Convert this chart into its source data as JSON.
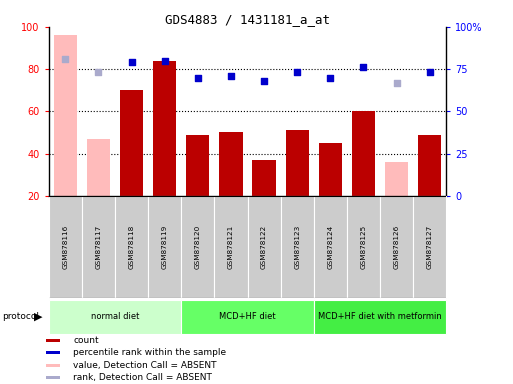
{
  "title": "GDS4883 / 1431181_a_at",
  "samples": [
    "GSM878116",
    "GSM878117",
    "GSM878118",
    "GSM878119",
    "GSM878120",
    "GSM878121",
    "GSM878122",
    "GSM878123",
    "GSM878124",
    "GSM878125",
    "GSM878126",
    "GSM878127"
  ],
  "count_values": [
    null,
    null,
    70,
    84,
    49,
    50,
    37,
    51,
    45,
    60,
    null,
    49
  ],
  "count_absent": [
    96,
    47,
    null,
    null,
    null,
    null,
    null,
    null,
    null,
    null,
    36,
    null
  ],
  "percentile_values": [
    null,
    null,
    79,
    80,
    70,
    71,
    68,
    73,
    70,
    76,
    null,
    73
  ],
  "percentile_absent": [
    81,
    73,
    null,
    null,
    null,
    null,
    null,
    null,
    null,
    null,
    67,
    null
  ],
  "groups": [
    {
      "label": "normal diet",
      "start": 0,
      "end": 3,
      "color": "#ccffcc"
    },
    {
      "label": "MCD+HF diet",
      "start": 4,
      "end": 7,
      "color": "#66ff66"
    },
    {
      "label": "MCD+HF diet with metformin",
      "start": 8,
      "end": 11,
      "color": "#44ee44"
    }
  ],
  "ylim": [
    20,
    100
  ],
  "y2lim": [
    0,
    100
  ],
  "yticks": [
    20,
    40,
    60,
    80,
    100
  ],
  "y2ticks": [
    0,
    25,
    50,
    75,
    100
  ],
  "bar_color_present": "#bb0000",
  "bar_color_absent": "#ffbbbb",
  "dot_color_present": "#0000cc",
  "dot_color_absent": "#aaaacc",
  "plot_bg": "#ffffff",
  "label_bg": "#cccccc"
}
